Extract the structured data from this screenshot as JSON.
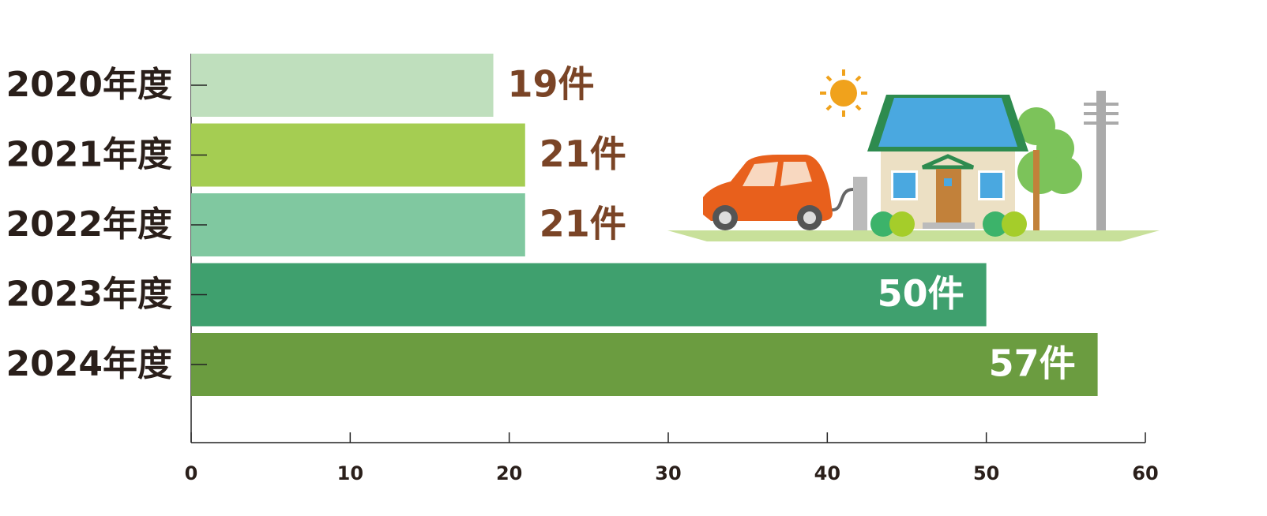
{
  "chart_data": {
    "type": "bar",
    "orientation": "horizontal",
    "categories": [
      "2020年度",
      "2021年度",
      "2022年度",
      "2023年度",
      "2024年度"
    ],
    "values": [
      19,
      21,
      21,
      50,
      57
    ],
    "value_labels": [
      "19件",
      "21件",
      "21件",
      "50件",
      "57件"
    ],
    "colors": [
      "#bfdfbd",
      "#a5cd52",
      "#80c8a0",
      "#3fa06e",
      "#6b9c40"
    ],
    "xlim": [
      0,
      60
    ],
    "xticks": [
      0,
      10,
      20,
      30,
      40,
      50,
      60
    ]
  }
}
